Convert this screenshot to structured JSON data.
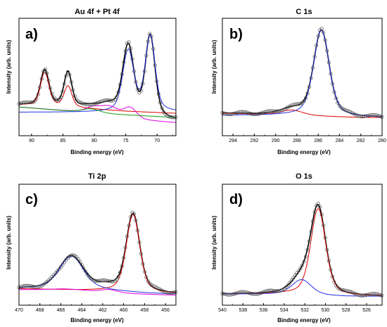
{
  "chart_data": [
    {
      "type": "line",
      "title": "Au 4f + Pt 4f",
      "panel_label": "a)",
      "xlabel": "Binding energy (eV)",
      "ylabel": "Intensity (arb. units)",
      "xlim": [
        92,
        67
      ],
      "x_reversed": true,
      "xticks": [
        90,
        85,
        80,
        75,
        70
      ],
      "ylim": [
        0,
        1
      ],
      "y_ticks_labeled": false,
      "series": [
        {
          "id": "envelope",
          "color": "#000000",
          "peaks": [
            {
              "c": 87.9,
              "a": 0.34,
              "w": 0.65
            },
            {
              "c": 84.2,
              "a": 0.33,
              "w": 0.6
            },
            {
              "c": 74.6,
              "a": 0.66,
              "w": 0.85
            },
            {
              "c": 71.1,
              "a": 0.78,
              "w": 0.75
            },
            {
              "c": 77.6,
              "a": 0.07,
              "w": 1.3
            },
            {
              "c": 80.5,
              "a": 0.04,
              "w": 1.4
            }
          ],
          "baseline": [
            [
              92,
              0.24
            ],
            [
              85,
              0.22
            ],
            [
              78,
              0.16
            ],
            [
              72,
              0.11
            ],
            [
              67,
              0.09
            ]
          ]
        },
        {
          "id": "data-markers",
          "color": "#555555",
          "peaks": [
            {
              "c": 87.9,
              "a": 0.34,
              "w": 0.65
            },
            {
              "c": 84.2,
              "a": 0.33,
              "w": 0.6
            },
            {
              "c": 74.6,
              "a": 0.66,
              "w": 0.85
            },
            {
              "c": 71.1,
              "a": 0.78,
              "w": 0.75
            },
            {
              "c": 77.6,
              "a": 0.07,
              "w": 1.3
            },
            {
              "c": 80.5,
              "a": 0.04,
              "w": 1.4
            }
          ],
          "baseline": [
            [
              92,
              0.24
            ],
            [
              85,
              0.22
            ],
            [
              78,
              0.16
            ],
            [
              72,
              0.11
            ],
            [
              67,
              0.09
            ]
          ]
        },
        {
          "id": "red-component",
          "color": "#e00000",
          "peaks": [
            {
              "c": 87.9,
              "a": 0.32,
              "w": 0.65
            },
            {
              "c": 84.2,
              "a": 0.2,
              "w": 0.6
            }
          ],
          "baseline": [
            [
              92,
              0.24
            ],
            [
              85,
              0.22
            ],
            [
              80,
              0.2
            ],
            [
              75,
              0.18
            ],
            [
              67,
              0.16
            ]
          ]
        },
        {
          "id": "blue-component",
          "color": "#2030e0",
          "peaks": [
            {
              "c": 74.6,
              "a": 0.58,
              "w": 0.85
            },
            {
              "c": 71.1,
              "a": 0.72,
              "w": 0.75
            }
          ],
          "baseline": [
            [
              92,
              0.17
            ],
            [
              80,
              0.17
            ],
            [
              67,
              0.17
            ]
          ]
        },
        {
          "id": "magenta-component",
          "color": "#e000e0",
          "peaks": [
            {
              "c": 77.6,
              "a": 0.08,
              "w": 1.3
            },
            {
              "c": 74.3,
              "a": 0.1,
              "w": 1.0
            },
            {
              "c": 80.2,
              "a": 0.05,
              "w": 1.2
            }
          ],
          "baseline": [
            [
              92,
              0.22
            ],
            [
              80,
              0.16
            ],
            [
              72,
              0.09
            ],
            [
              67,
              0.07
            ]
          ]
        },
        {
          "id": "green-component",
          "color": "#10a010",
          "peaks": [
            {
              "c": 80.5,
              "a": 0.04,
              "w": 1.4
            }
          ],
          "baseline": [
            [
              92,
              0.22
            ],
            [
              80,
              0.16
            ],
            [
              67,
              0.12
            ]
          ]
        }
      ]
    },
    {
      "type": "line",
      "title": "C 1s",
      "panel_label": "b)",
      "xlabel": "Binding energy (eV)",
      "ylabel": "Intensity (arb. units)",
      "xlim": [
        295,
        280
      ],
      "x_reversed": true,
      "xticks": [
        294,
        292,
        290,
        288,
        286,
        284,
        282,
        280
      ],
      "ylim": [
        0,
        1
      ],
      "y_ticks_labeled": false,
      "series": [
        {
          "id": "envelope",
          "color": "#000000",
          "peaks": [
            {
              "c": 285.7,
              "a": 0.82,
              "w": 0.7
            },
            {
              "c": 288.5,
              "a": 0.05,
              "w": 1.0
            }
          ],
          "baseline": [
            [
              295,
              0.16
            ],
            [
              288,
              0.14
            ],
            [
              282,
              0.12
            ],
            [
              280,
              0.12
            ]
          ]
        },
        {
          "id": "data-markers",
          "color": "#555555",
          "peaks": [
            {
              "c": 285.7,
              "a": 0.82,
              "w": 0.7
            },
            {
              "c": 288.5,
              "a": 0.05,
              "w": 1.0
            }
          ],
          "baseline": [
            [
              295,
              0.16
            ],
            [
              288,
              0.14
            ],
            [
              282,
              0.12
            ],
            [
              280,
              0.12
            ]
          ]
        },
        {
          "id": "red-component",
          "color": "#e00000",
          "peaks": [
            {
              "c": 288.5,
              "a": 0.05,
              "w": 1.0
            }
          ],
          "baseline": [
            [
              295,
              0.16
            ],
            [
              288,
              0.14
            ],
            [
              282,
              0.12
            ],
            [
              280,
              0.12
            ]
          ]
        },
        {
          "id": "blue-component",
          "color": "#2030e0",
          "peaks": [
            {
              "c": 285.7,
              "a": 0.82,
              "w": 0.7
            }
          ],
          "baseline": [
            [
              295,
              0.14
            ],
            [
              288,
              0.14
            ],
            [
              286,
              0.14
            ],
            [
              282,
              0.12
            ],
            [
              280,
              0.12
            ]
          ]
        }
      ]
    },
    {
      "type": "line",
      "title": "Ti 2p",
      "panel_label": "c)",
      "xlabel": "Binding energy (eV)",
      "ylabel": "Intensity (arb. units)",
      "xlim": [
        470,
        455
      ],
      "x_reversed": true,
      "xticks": [
        470,
        468,
        466,
        464,
        462,
        460,
        458,
        456
      ],
      "ylim": [
        0,
        1
      ],
      "y_ticks_labeled": false,
      "series": [
        {
          "id": "envelope",
          "color": "#000000",
          "peaks": [
            {
              "c": 465.0,
              "a": 0.3,
              "w": 1.1
            },
            {
              "c": 459.1,
              "a": 0.72,
              "w": 0.62
            },
            {
              "c": 461.5,
              "a": 0.03,
              "w": 0.9
            }
          ],
          "baseline": [
            [
              470,
              0.1
            ],
            [
              464,
              0.1
            ],
            [
              458,
              0.06
            ],
            [
              455,
              0.05
            ]
          ]
        },
        {
          "id": "data-markers",
          "color": "#555555",
          "peaks": [
            {
              "c": 465.0,
              "a": 0.3,
              "w": 1.1
            },
            {
              "c": 459.1,
              "a": 0.72,
              "w": 0.62
            },
            {
              "c": 461.5,
              "a": 0.03,
              "w": 0.9
            }
          ],
          "baseline": [
            [
              470,
              0.1
            ],
            [
              464,
              0.1
            ],
            [
              458,
              0.06
            ],
            [
              455,
              0.05
            ]
          ]
        },
        {
          "id": "red-component",
          "color": "#e00000",
          "peaks": [
            {
              "c": 459.1,
              "a": 0.72,
              "w": 0.62
            }
          ],
          "baseline": [
            [
              470,
              0.1
            ],
            [
              462,
              0.08
            ],
            [
              458,
              0.06
            ],
            [
              455,
              0.05
            ]
          ]
        },
        {
          "id": "magenta-component",
          "color": "#e000e0",
          "peaks": [
            {
              "c": 465.1,
              "a": 0.02,
              "w": 2.0
            },
            {
              "c": 461.4,
              "a": 0.03,
              "w": 0.8
            }
          ],
          "baseline": [
            [
              470,
              0.09
            ],
            [
              466,
              0.08
            ],
            [
              462,
              0.06
            ],
            [
              455,
              0.04
            ]
          ]
        },
        {
          "id": "blue-component",
          "color": "#2030e0",
          "peaks": [
            {
              "c": 465.0,
              "a": 0.3,
              "w": 1.1
            }
          ],
          "baseline": [
            [
              470,
              0.1
            ],
            [
              464,
              0.1
            ],
            [
              461,
              0.08
            ],
            [
              458,
              0.06
            ],
            [
              455,
              0.05
            ]
          ]
        }
      ]
    },
    {
      "type": "line",
      "title": "O 1s",
      "panel_label": "d)",
      "xlabel": "Binding energy (eV)",
      "ylabel": "Intensity (arb. units)",
      "xlim": [
        540,
        524.5
      ],
      "x_reversed": true,
      "xticks": [
        540,
        538,
        536,
        534,
        532,
        530,
        528,
        526
      ],
      "ylim": [
        0,
        1
      ],
      "y_ticks_labeled": false,
      "series": [
        {
          "id": "envelope",
          "color": "#000000",
          "peaks": [
            {
              "c": 530.7,
              "a": 0.8,
              "w": 0.7
            },
            {
              "c": 532.3,
              "a": 0.14,
              "w": 0.9
            }
          ],
          "baseline": [
            [
              540,
              0.05
            ],
            [
              534,
              0.05
            ],
            [
              528,
              0.03
            ],
            [
              524.5,
              0.03
            ]
          ]
        },
        {
          "id": "data-markers",
          "color": "#555555",
          "peaks": [
            {
              "c": 530.7,
              "a": 0.8,
              "w": 0.7
            },
            {
              "c": 532.3,
              "a": 0.14,
              "w": 0.9
            }
          ],
          "baseline": [
            [
              540,
              0.05
            ],
            [
              534,
              0.05
            ],
            [
              528,
              0.03
            ],
            [
              524.5,
              0.03
            ]
          ]
        },
        {
          "id": "red-component",
          "color": "#e00000",
          "peaks": [
            {
              "c": 530.7,
              "a": 0.8,
              "w": 0.7
            }
          ],
          "baseline": [
            [
              540,
              0.05
            ],
            [
              534,
              0.05
            ],
            [
              528,
              0.03
            ],
            [
              524.5,
              0.03
            ]
          ]
        },
        {
          "id": "blue-component",
          "color": "#2030e0",
          "peaks": [
            {
              "c": 532.3,
              "a": 0.14,
              "w": 0.9
            }
          ],
          "baseline": [
            [
              540,
              0.05
            ],
            [
              534,
              0.05
            ],
            [
              528,
              0.03
            ],
            [
              524.5,
              0.03
            ]
          ]
        }
      ]
    }
  ]
}
